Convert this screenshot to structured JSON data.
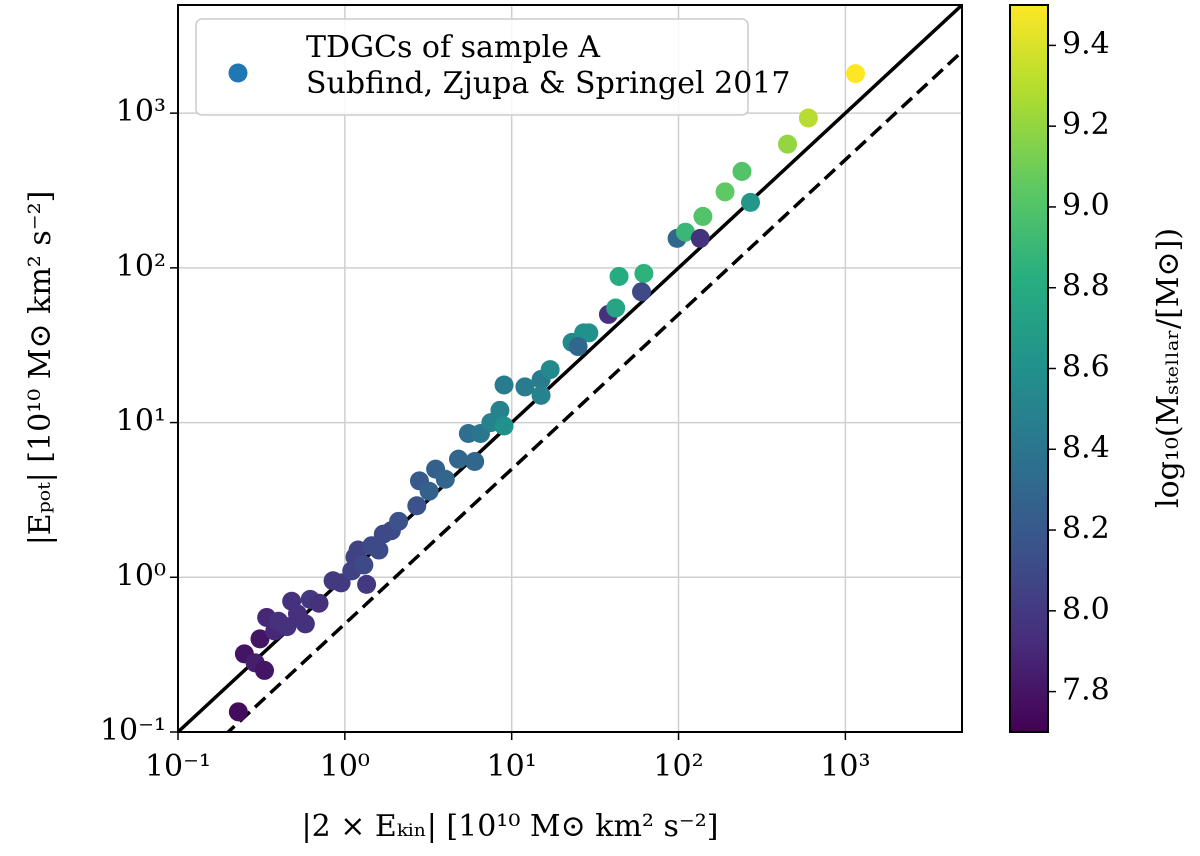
{
  "chart_data": {
    "type": "scatter",
    "x_label": "|2 × Eₖᵢₙ| [10¹⁰ M⊙ km² s⁻²]",
    "y_label": "|Eₚₒₜ| [10¹⁰ M⊙ km² s⁻²]",
    "colorbar_label": "log₁₀(Mₛₜₑₗₗₐᵣ/[M⊙])",
    "log_x": true,
    "log_y": true,
    "grid": true,
    "xlim": [
      0.1,
      5000
    ],
    "ylim": [
      0.1,
      5000
    ],
    "xticks": [
      {
        "value": 0.1,
        "label": "10⁻¹"
      },
      {
        "value": 1,
        "label": "10⁰"
      },
      {
        "value": 10,
        "label": "10¹"
      },
      {
        "value": 100,
        "label": "10²"
      },
      {
        "value": 1000,
        "label": "10³"
      }
    ],
    "yticks": [
      {
        "value": 0.1,
        "label": "10⁻¹"
      },
      {
        "value": 1,
        "label": "10⁰"
      },
      {
        "value": 10,
        "label": "10¹"
      },
      {
        "value": 100,
        "label": "10²"
      },
      {
        "value": 1000,
        "label": "10³"
      }
    ],
    "clim": [
      7.7,
      9.5
    ],
    "cticks": [
      7.8,
      {
        "value": 8.0,
        "label": "8.0"
      },
      8.2,
      8.4,
      8.6,
      8.8,
      {
        "value": 9.0,
        "label": "9.0"
      },
      9.2,
      9.4
    ],
    "colormap": [
      "#440154",
      "#472d7b",
      "#3b528b",
      "#2c728e",
      "#21918c",
      "#28ae80",
      "#5ec962",
      "#addc30",
      "#fde725"
    ],
    "reference_lines": [
      {
        "factor": 1,
        "dashed": false
      },
      {
        "factor": 0.5,
        "dashed": true
      }
    ],
    "legend": "upper left",
    "series": [
      {
        "name_lines": [
          "TDGCs of sample A",
          "Subfind, Zjupa & Springel 2017"
        ],
        "color": "#1f77b4",
        "x": [
          0.23,
          0.25,
          0.29,
          0.31,
          0.33,
          0.34,
          0.38,
          0.4,
          0.45,
          0.48,
          0.52,
          0.58,
          0.62,
          0.7,
          0.85,
          0.95,
          1.1,
          1.15,
          1.2,
          1.3,
          1.35,
          1.45,
          1.6,
          1.7,
          1.9,
          2.1,
          2.7,
          2.8,
          3.2,
          3.5,
          4.0,
          4.8,
          5.5,
          6.0,
          6.5,
          7.5,
          8.5,
          9.0,
          9.0,
          12,
          15,
          15,
          17,
          23,
          27,
          29,
          25,
          38,
          42,
          44,
          62,
          60,
          98,
          110,
          135,
          140,
          190,
          240,
          270,
          450,
          600,
          1150
        ],
        "y": [
          0.135,
          0.32,
          0.28,
          0.4,
          0.25,
          0.55,
          0.45,
          0.52,
          0.48,
          0.7,
          0.58,
          0.5,
          0.72,
          0.68,
          0.95,
          0.92,
          1.1,
          1.35,
          1.5,
          1.2,
          0.9,
          1.6,
          1.5,
          1.9,
          2.0,
          2.3,
          2.9,
          4.2,
          3.6,
          5.0,
          4.3,
          5.8,
          8.5,
          5.6,
          8.5,
          10,
          12,
          9.5,
          17.5,
          17,
          19,
          15,
          22,
          33,
          38,
          38,
          31,
          50,
          55,
          88,
          92,
          70,
          155,
          170,
          155,
          215,
          310,
          420,
          265,
          630,
          930,
          1800
        ],
        "c": [
          7.75,
          7.8,
          7.85,
          7.8,
          7.8,
          7.9,
          7.9,
          7.95,
          7.95,
          7.95,
          7.95,
          7.95,
          8.0,
          7.95,
          8.0,
          8.0,
          8.05,
          8.05,
          8.05,
          8.1,
          8.0,
          8.1,
          8.1,
          8.1,
          8.1,
          8.15,
          8.15,
          8.2,
          8.25,
          8.25,
          8.3,
          8.3,
          8.35,
          8.3,
          8.4,
          8.5,
          8.5,
          8.6,
          8.45,
          8.45,
          8.45,
          8.5,
          8.55,
          8.55,
          8.6,
          8.6,
          8.3,
          7.95,
          8.75,
          8.8,
          8.85,
          8.1,
          8.3,
          8.9,
          7.95,
          9.0,
          9.05,
          9.0,
          8.65,
          9.2,
          9.3,
          9.5
        ]
      }
    ]
  }
}
